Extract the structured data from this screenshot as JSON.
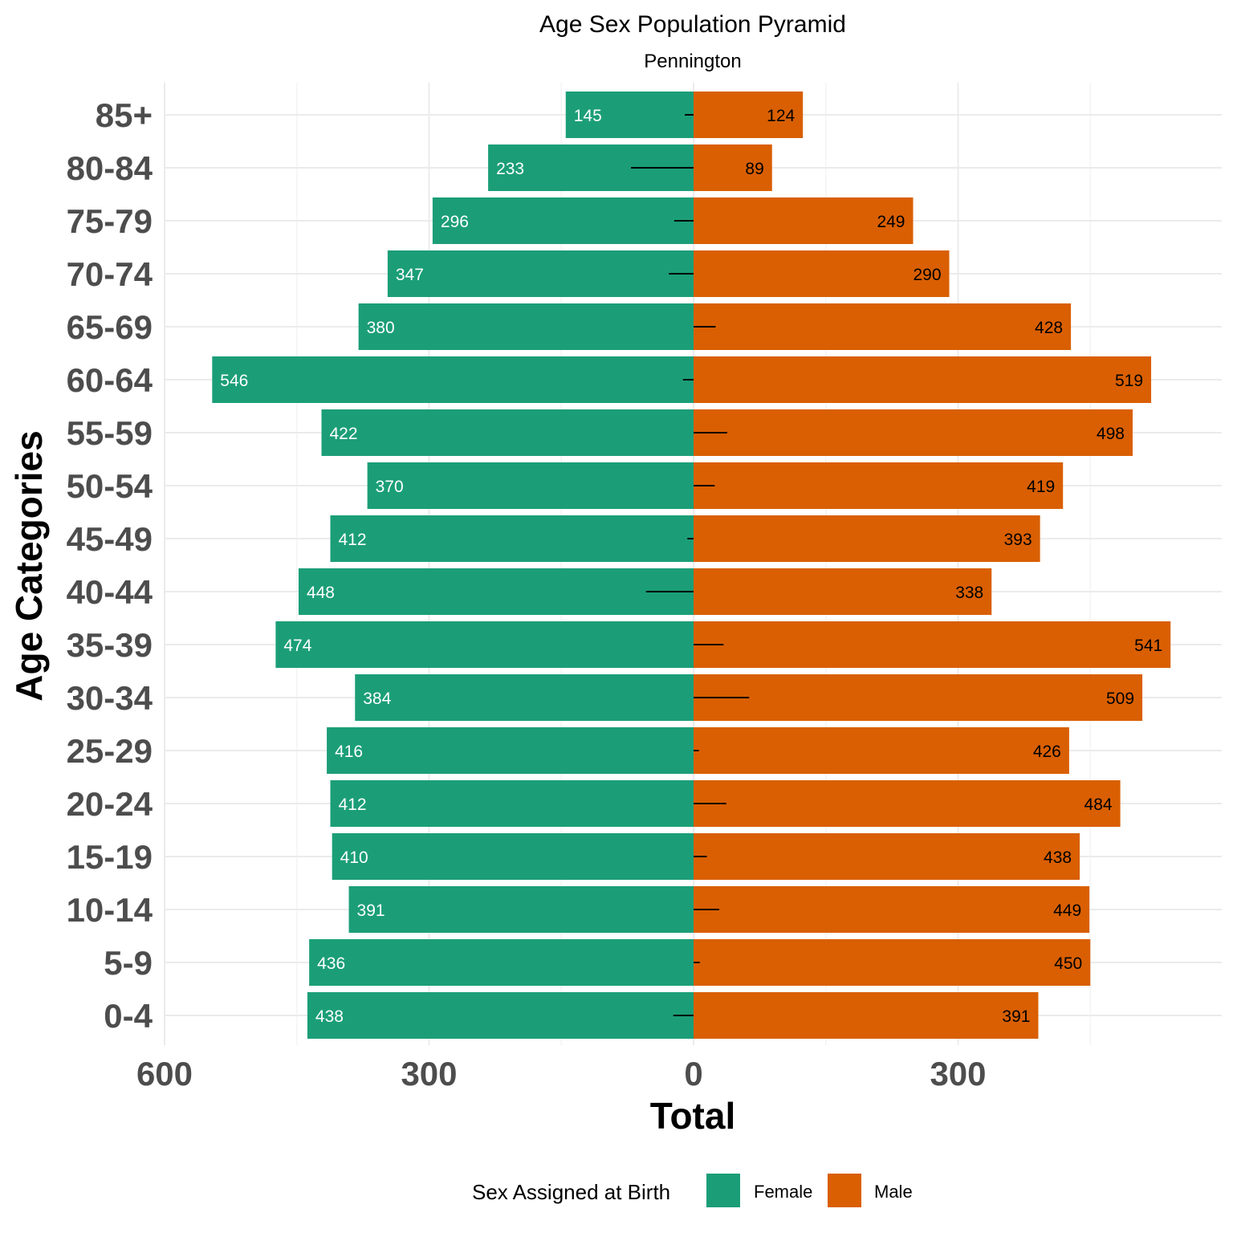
{
  "chart_data": {
    "type": "bar",
    "orientation": "horizontal-pyramid",
    "title": "Age Sex Population Pyramid",
    "subtitle": "Pennington",
    "xlabel": "Total",
    "ylabel": "Age Categories",
    "xlim": [
      -600,
      600
    ],
    "x_ticks": [
      {
        "value": -600,
        "label": "600"
      },
      {
        "value": -300,
        "label": "300"
      },
      {
        "value": 0,
        "label": "0"
      },
      {
        "value": 300,
        "label": "300"
      }
    ],
    "grid": true,
    "legend": {
      "title": "Sex Assigned at Birth",
      "position": "bottom",
      "entries": [
        {
          "label": "Female",
          "color": "#1b9e77"
        },
        {
          "label": "Male",
          "color": "#d95f02"
        }
      ]
    },
    "categories": [
      "0-4",
      "5-9",
      "10-14",
      "15-19",
      "20-24",
      "25-29",
      "30-34",
      "35-39",
      "40-44",
      "45-49",
      "50-54",
      "55-59",
      "60-64",
      "65-69",
      "70-74",
      "75-79",
      "80-84",
      "85+"
    ],
    "series": [
      {
        "name": "Female",
        "color": "#1b9e77",
        "side": "left",
        "values": [
          438,
          436,
          391,
          410,
          412,
          416,
          384,
          474,
          448,
          412,
          370,
          422,
          546,
          380,
          347,
          296,
          233,
          145
        ]
      },
      {
        "name": "Male",
        "color": "#d95f02",
        "side": "right",
        "values": [
          391,
          450,
          449,
          438,
          484,
          426,
          509,
          541,
          338,
          393,
          419,
          498,
          519,
          428,
          290,
          249,
          89,
          124
        ]
      }
    ],
    "difference_bars": [
      -23,
      7,
      29,
      15,
      37,
      6,
      63,
      34,
      -54,
      -7,
      24,
      38,
      -12,
      25,
      -28,
      -22,
      -71,
      -10
    ]
  }
}
